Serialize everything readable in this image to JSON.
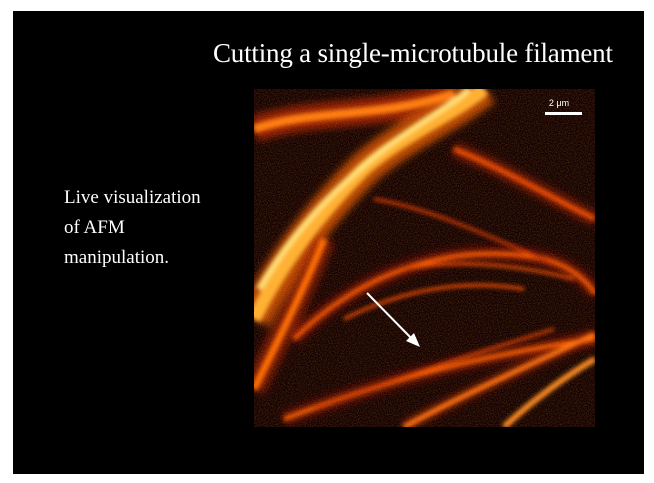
{
  "slide": {
    "title": "Cutting a single-microtubule filament",
    "caption_lines": [
      "Live visualization",
      "of AFM",
      "manipulation."
    ],
    "background_color": "#000000"
  },
  "micrograph": {
    "scale_bar_label": "2 μm",
    "colormap": [
      "#1a0000",
      "#7a0a00",
      "#d43a00",
      "#ff8a10",
      "#ffe27a"
    ],
    "arrow_color": "#ffffff"
  }
}
